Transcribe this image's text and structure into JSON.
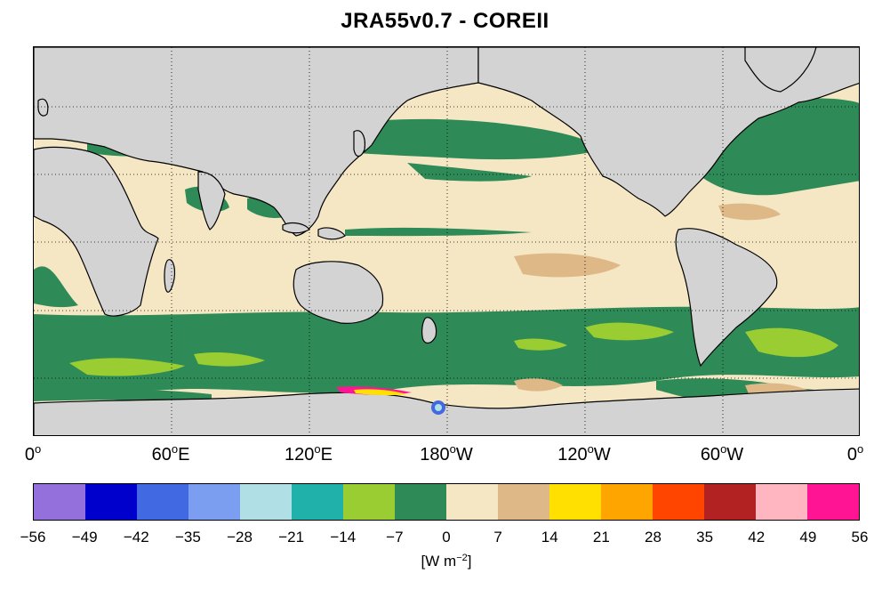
{
  "title": "JRA55v0.7 - COREII",
  "map": {
    "projection": "equirectangular",
    "longitude_range": "0° to 360° (0°, 60°E, 120°E, 180°W, 120°W, 60°W, 0°)",
    "gridlines": "dotted",
    "land_color": "#d3d3d3",
    "coastline_color": "#000000",
    "lon_labels": [
      {
        "num": "0",
        "suffix": ""
      },
      {
        "num": "60",
        "suffix": "E"
      },
      {
        "num": "120",
        "suffix": "E"
      },
      {
        "num": "180",
        "suffix": "W"
      },
      {
        "num": "120",
        "suffix": "W"
      },
      {
        "num": "60",
        "suffix": "W"
      },
      {
        "num": "0",
        "suffix": ""
      }
    ]
  },
  "colorbar": {
    "colors": [
      "#9370db",
      "#0000cd",
      "#4169e1",
      "#7b9ef0",
      "#b0e0e6",
      "#20b2aa",
      "#9acd32",
      "#2e8b57",
      "#f5e6c4",
      "#deb887",
      "#ffe000",
      "#ffa500",
      "#ff4500",
      "#b22222",
      "#ffb6c1",
      "#ff1493"
    ],
    "ticks": [
      "−56",
      "−49",
      "−42",
      "−35",
      "−28",
      "−21",
      "−14",
      "−7",
      "0",
      "7",
      "14",
      "21",
      "28",
      "35",
      "42",
      "49",
      "56"
    ],
    "units_prefix": "[W m",
    "units_exp": "−2",
    "units_suffix": "]"
  }
}
